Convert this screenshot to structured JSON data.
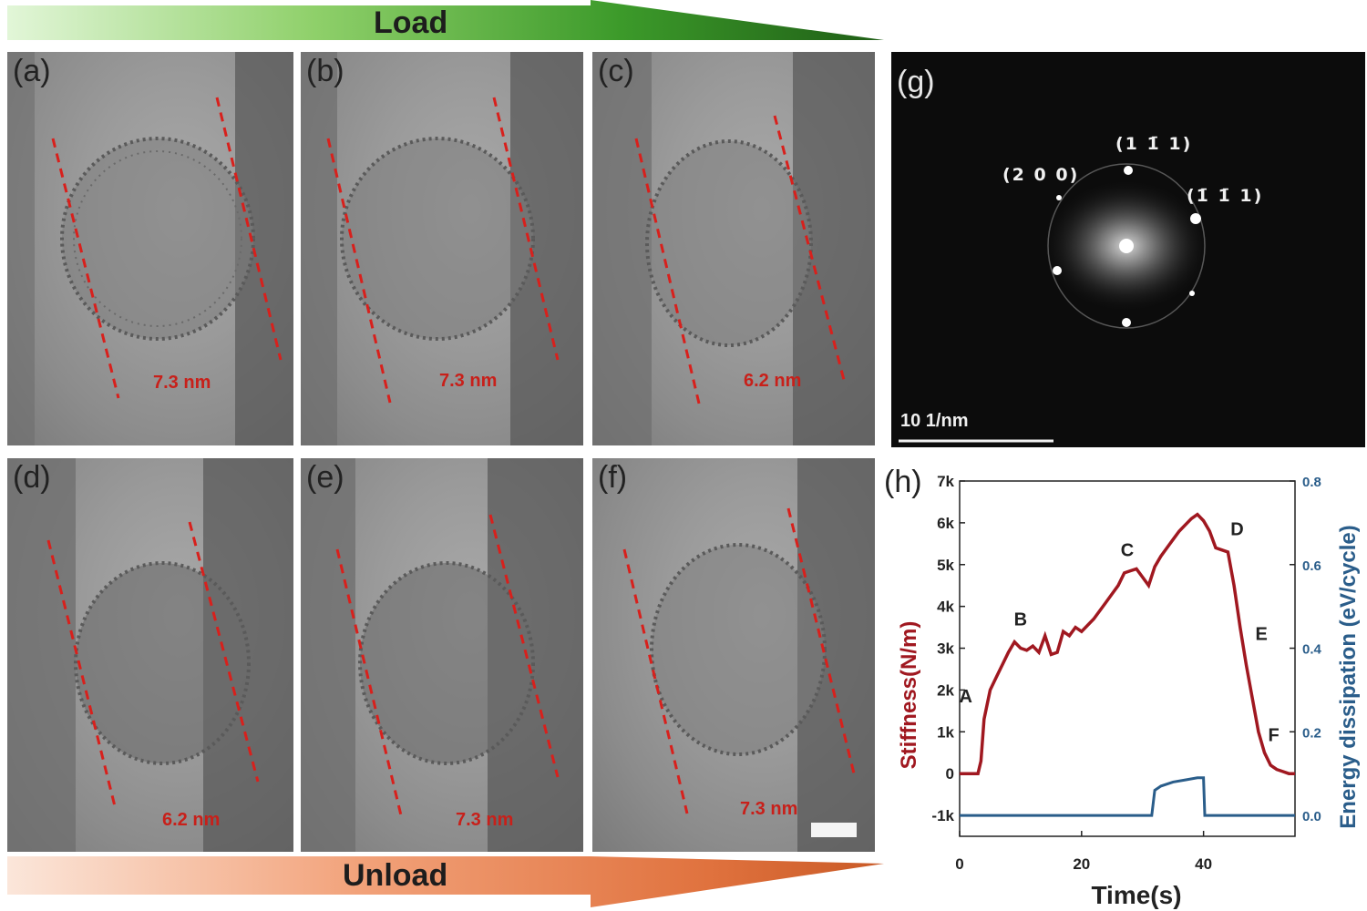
{
  "load_arrow": {
    "label": "Load"
  },
  "unload_arrow": {
    "label": "Unload"
  },
  "panels": [
    {
      "label": "(a)",
      "measurement": "7.3 nm"
    },
    {
      "label": "(b)",
      "measurement": "7.3 nm"
    },
    {
      "label": "(c)",
      "measurement": "6.2 nm"
    },
    {
      "label": "(d)",
      "measurement": "6.2 nm"
    },
    {
      "label": "(e)",
      "measurement": "7.3 nm"
    },
    {
      "label": "(f)",
      "measurement": "7.3 nm"
    }
  ],
  "fft_panel": {
    "label": "(g)",
    "reflections": [
      "(2 0 0)",
      "(1 1̄ 1)",
      "(1̄ 1̄ 1)"
    ],
    "scale_bar": "10 1/nm"
  },
  "chart_panel": {
    "label": "(h)"
  },
  "colors": {
    "stiffness": "#a01820",
    "energy": "#2a5d8a",
    "measure": "#c8201a"
  },
  "chart_data": {
    "type": "line",
    "xlabel": "Time(s)",
    "ylabel": "Stiffness(N/m)",
    "y2label": "Energy dissipation (eV/cycle)",
    "xlim": [
      0,
      55
    ],
    "ylim": [
      -1500,
      7000
    ],
    "y2lim": [
      -0.05,
      0.8
    ],
    "xticks": [
      "0",
      "20",
      "40"
    ],
    "yticks": [
      "-1k",
      "0",
      "1k",
      "2k",
      "3k",
      "4k",
      "5k",
      "6k",
      "7k"
    ],
    "y2ticks": [
      "0.0",
      "0.2",
      "0.4",
      "0.6",
      "0.8"
    ],
    "series": [
      {
        "name": "Stiffness(N/m)",
        "axis": "left",
        "x": [
          0,
          3,
          3.5,
          4,
          5,
          6,
          7,
          8,
          9,
          10,
          11,
          12,
          13,
          14,
          15,
          16,
          17,
          18,
          19,
          20,
          22,
          24,
          25,
          26,
          27,
          28,
          29,
          30,
          31,
          32,
          33,
          34,
          35,
          36,
          37,
          38,
          39,
          40,
          41,
          42,
          43,
          44,
          45,
          46,
          47,
          48,
          49,
          50,
          51,
          52,
          53,
          54,
          55
        ],
        "y": [
          0,
          0,
          300,
          1300,
          2000,
          2300,
          2600,
          2900,
          3150,
          3000,
          2950,
          3050,
          2900,
          3300,
          2850,
          2900,
          3400,
          3300,
          3500,
          3400,
          3700,
          4100,
          4300,
          4500,
          4800,
          4850,
          4900,
          4700,
          4500,
          4950,
          5200,
          5400,
          5600,
          5800,
          5950,
          6100,
          6200,
          6050,
          5800,
          5400,
          5350,
          5300,
          4500,
          3500,
          2600,
          1800,
          1000,
          500,
          200,
          100,
          50,
          0,
          0
        ]
      },
      {
        "name": "Energy dissipation (eV/cycle)",
        "axis": "right",
        "x": [
          0,
          10,
          20,
          31.5,
          32,
          33,
          35,
          37,
          39,
          40,
          40.2,
          45,
          50,
          55
        ],
        "y": [
          0.0,
          0.0,
          0.0,
          0.0,
          0.06,
          0.07,
          0.08,
          0.085,
          0.09,
          0.09,
          0.0,
          0.0,
          0.0,
          0.0
        ]
      }
    ],
    "annotations": [
      {
        "text": "A",
        "x": 1,
        "y": 1700
      },
      {
        "text": "B",
        "x": 10,
        "y": 3550
      },
      {
        "text": "C",
        "x": 27.5,
        "y": 5200
      },
      {
        "text": "D",
        "x": 45.5,
        "y": 5700
      },
      {
        "text": "E",
        "x": 49.5,
        "y": 3200
      },
      {
        "text": "F",
        "x": 51.5,
        "y": 780
      }
    ]
  }
}
